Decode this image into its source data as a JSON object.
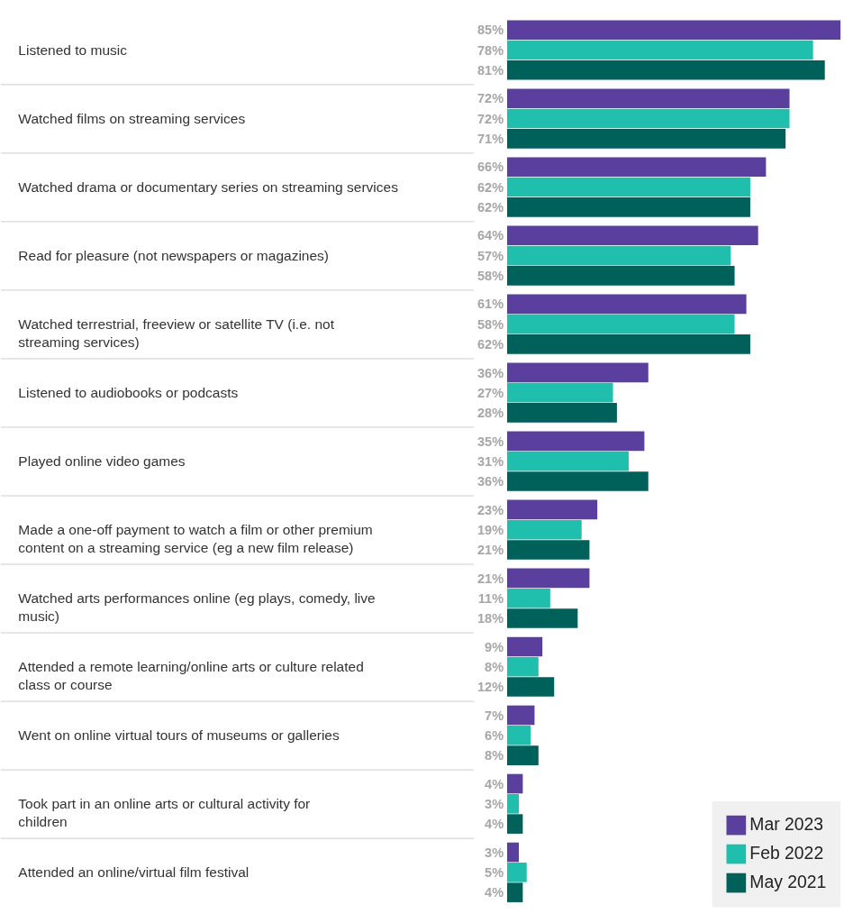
{
  "chart_data": {
    "type": "bar",
    "orientation": "horizontal",
    "legend": "bottom right",
    "categories": [
      "Listened to music",
      "Watched films on streaming services",
      "Watched drama or documentary series on streaming services",
      "Read for pleasure (not newspapers or magazines)",
      "Watched terrestrial, freeview or satellite TV (i.e. not streaming services)",
      "Listened to audiobooks or podcasts",
      "Played online video games",
      "Made a one-off payment to watch a film or other premium content on a streaming service (eg a new film release)",
      "Watched arts performances online (eg plays, comedy, live music)",
      "Attended a remote learning/online arts or culture related class or course",
      "Went on online virtual tours of museums or galleries",
      "Took part in an online arts or cultural activity for children",
      "Attended an online/virtual film festival"
    ],
    "series": [
      {
        "name": "Mar 2023",
        "color": "#5b3f9e",
        "values": [
          85,
          72,
          66,
          64,
          61,
          36,
          35,
          23,
          21,
          9,
          7,
          4,
          3
        ],
        "value_labels": [
          "85%",
          "72%",
          "66%",
          "64%",
          "61%",
          "36%",
          "35%",
          "23%",
          "21%",
          "9%",
          "7%",
          "4%",
          "3%"
        ]
      },
      {
        "name": "Feb 2022",
        "color": "#20bfad",
        "values": [
          78,
          72,
          62,
          57,
          58,
          27,
          31,
          19,
          11,
          8,
          6,
          3,
          5
        ],
        "value_labels": [
          "78%",
          "72%",
          "62%",
          "57%",
          "58%",
          "27%",
          "31%",
          "19%",
          "11%",
          "8%",
          "6%",
          "3%",
          "5%"
        ]
      },
      {
        "name": "May 2021",
        "color": "#00605a",
        "values": [
          81,
          71,
          62,
          58,
          62,
          28,
          36,
          21,
          18,
          12,
          8,
          4,
          4
        ],
        "value_labels": [
          "81%",
          "71%",
          "62%",
          "58%",
          "62%",
          "28%",
          "36%",
          "21%",
          "18%",
          "12%",
          "8%",
          "4%",
          "4%"
        ]
      }
    ]
  }
}
